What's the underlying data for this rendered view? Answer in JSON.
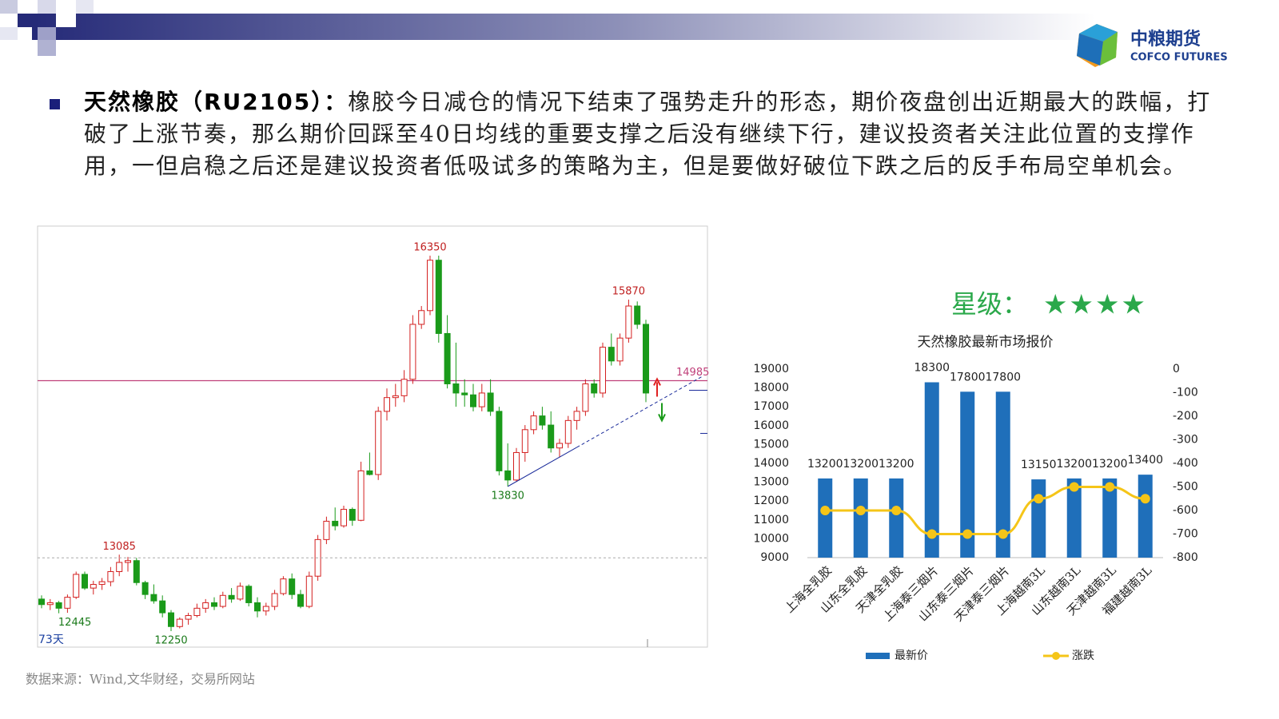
{
  "header": {
    "logo_cn": "中粮期货",
    "logo_en": "COFCO FUTURES"
  },
  "bullet": {
    "title": "天然橡胶（RU2105）：",
    "body": "橡胶今日减仓的情况下结束了强势走升的形态，期价夜盘创出近期最大的跌幅，打破了上涨节奏，那么期价回踩至40日均线的重要支撑之后没有继续下行，建议投资者关注此位置的支撑作用，一但启稳之后还是建议投资者低吸试多的策略为主，但是要做好破位下跌之后的反手布局空单机会。"
  },
  "rating": {
    "label": "星级：",
    "stars": "★★★★"
  },
  "source": "数据来源：Wind,文华财经，交易所网站",
  "chart_data": [
    {
      "type": "candlestick",
      "period_label": "73天",
      "candles": [
        [
          12600,
          12640,
          12500,
          12540
        ],
        [
          12540,
          12600,
          12480,
          12560
        ],
        [
          12560,
          12580,
          12445,
          12500
        ],
        [
          12500,
          12650,
          12450,
          12620
        ],
        [
          12620,
          12900,
          12600,
          12870
        ],
        [
          12870,
          12900,
          12700,
          12720
        ],
        [
          12720,
          12800,
          12650,
          12760
        ],
        [
          12760,
          12830,
          12700,
          12790
        ],
        [
          12790,
          12950,
          12740,
          12900
        ],
        [
          12900,
          13085,
          12850,
          13000
        ],
        [
          13000,
          13060,
          12900,
          13020
        ],
        [
          13020,
          13050,
          12750,
          12780
        ],
        [
          12780,
          12800,
          12600,
          12650
        ],
        [
          12650,
          12760,
          12550,
          12580
        ],
        [
          12580,
          12640,
          12400,
          12450
        ],
        [
          12450,
          12480,
          12250,
          12300
        ],
        [
          12300,
          12400,
          12280,
          12380
        ],
        [
          12380,
          12450,
          12320,
          12420
        ],
        [
          12420,
          12550,
          12400,
          12500
        ],
        [
          12500,
          12600,
          12450,
          12560
        ],
        [
          12560,
          12620,
          12480,
          12520
        ],
        [
          12520,
          12680,
          12500,
          12640
        ],
        [
          12640,
          12720,
          12560,
          12600
        ],
        [
          12600,
          12780,
          12580,
          12740
        ],
        [
          12740,
          12760,
          12520,
          12560
        ],
        [
          12560,
          12620,
          12400,
          12470
        ],
        [
          12470,
          12560,
          12420,
          12520
        ],
        [
          12520,
          12700,
          12480,
          12660
        ],
        [
          12660,
          12850,
          12640,
          12820
        ],
        [
          12820,
          12880,
          12600,
          12650
        ],
        [
          12650,
          12700,
          12500,
          12520
        ],
        [
          12520,
          12900,
          12500,
          12850
        ],
        [
          12850,
          13300,
          12800,
          13250
        ],
        [
          13250,
          13500,
          13200,
          13450
        ],
        [
          13450,
          13600,
          13350,
          13400
        ],
        [
          13400,
          13620,
          13380,
          13580
        ],
        [
          13580,
          13600,
          13400,
          13460
        ],
        [
          13460,
          14100,
          13450,
          14000
        ],
        [
          14000,
          14200,
          13950,
          13960
        ],
        [
          13960,
          14700,
          13900,
          14650
        ],
        [
          14650,
          14900,
          14550,
          14800
        ],
        [
          14800,
          14950,
          14700,
          14820
        ],
        [
          14820,
          15100,
          14750,
          15000
        ],
        [
          15000,
          15700,
          14950,
          15600
        ],
        [
          15600,
          15800,
          15550,
          15750
        ],
        [
          15750,
          16350,
          15700,
          16300
        ],
        [
          16300,
          16350,
          15400,
          15500
        ],
        [
          15500,
          15700,
          14900,
          14950
        ],
        [
          14950,
          15400,
          14700,
          14850
        ],
        [
          14850,
          15000,
          14700,
          14830
        ],
        [
          14830,
          14950,
          14650,
          14700
        ],
        [
          14700,
          14950,
          14650,
          14850
        ],
        [
          14850,
          15000,
          14600,
          14650
        ],
        [
          14650,
          14700,
          13950,
          14000
        ],
        [
          14000,
          14300,
          13830,
          13900
        ],
        [
          13900,
          14250,
          13880,
          14200
        ],
        [
          14200,
          14500,
          14100,
          14450
        ],
        [
          14450,
          14650,
          14400,
          14600
        ],
        [
          14600,
          14700,
          14450,
          14500
        ],
        [
          14500,
          14650,
          14200,
          14250
        ],
        [
          14250,
          14350,
          14150,
          14300
        ],
        [
          14300,
          14600,
          14250,
          14550
        ],
        [
          14550,
          14700,
          14450,
          14650
        ],
        [
          14650,
          15000,
          14600,
          14950
        ],
        [
          14950,
          15000,
          14800,
          14850
        ],
        [
          14850,
          15400,
          14800,
          15350
        ],
        [
          15350,
          15500,
          15150,
          15200
        ],
        [
          15200,
          15500,
          15150,
          15450
        ],
        [
          15450,
          15870,
          15400,
          15800
        ],
        [
          15800,
          15850,
          15550,
          15600
        ],
        [
          15600,
          15650,
          14750,
          14850
        ]
      ],
      "high_labels": [
        16350,
        15870,
        13085
      ],
      "low_labels": [
        13830,
        12445,
        12250
      ],
      "ref_line": {
        "value": 14985,
        "color": "#c0407a"
      },
      "up_color": "#d42020",
      "down_color": "#1a9a1a"
    },
    {
      "type": "bar_line",
      "title": "天然橡胶最新市场报价",
      "categories": [
        "上海全乳胶",
        "山东全乳胶",
        "天津全乳胶",
        "上海泰三烟片",
        "山东泰三烟片",
        "天津泰三烟片",
        "上海越南3L",
        "山东越南3L",
        "天津越南3L",
        "福建越南3L"
      ],
      "series": [
        {
          "name": "最新价",
          "color": "#1f6fba",
          "values": [
            13200,
            13200,
            13200,
            18300,
            17800,
            17800,
            13150,
            13200,
            13200,
            13400
          ]
        },
        {
          "name": "涨跌",
          "color": "#f5c518",
          "axis": "y2",
          "values": [
            -600,
            -600,
            -600,
            -700,
            -700,
            -700,
            -550,
            -500,
            -500,
            -550
          ]
        }
      ],
      "ylim": [
        9000,
        19000
      ],
      "yticks": [
        9000,
        10000,
        11000,
        12000,
        13000,
        14000,
        15000,
        16000,
        17000,
        18000,
        19000
      ],
      "y2lim": [
        -800,
        0
      ],
      "y2ticks": [
        0,
        -100,
        -200,
        -300,
        -400,
        -500,
        -600,
        -700,
        -800
      ]
    }
  ]
}
